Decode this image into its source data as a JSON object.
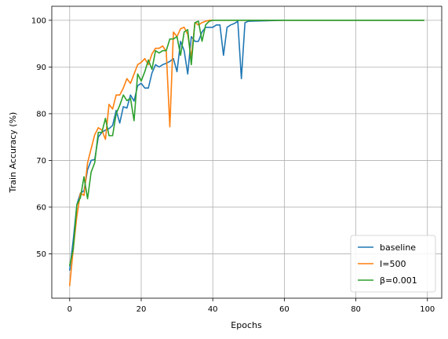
{
  "chart_data": {
    "type": "line",
    "xlabel": "Epochs",
    "ylabel": "Train Accuracy (%)",
    "xlim": [
      -5,
      104
    ],
    "ylim": [
      40.5,
      103
    ],
    "xticks": [
      0,
      20,
      40,
      60,
      80,
      100
    ],
    "yticks": [
      50,
      60,
      70,
      80,
      90,
      100
    ],
    "grid": true,
    "legend_position": "lower-right",
    "series": [
      {
        "name": "baseline",
        "color": "#1f77b4",
        "x": [
          0,
          1,
          2,
          3,
          4,
          5,
          6,
          7,
          8,
          9,
          10,
          11,
          12,
          13,
          14,
          15,
          16,
          17,
          18,
          19,
          20,
          21,
          22,
          23,
          24,
          25,
          26,
          27,
          28,
          29,
          30,
          31,
          32,
          33,
          34,
          35,
          36,
          37,
          38,
          39,
          40,
          41,
          42,
          43,
          44,
          45,
          46,
          47,
          48,
          49,
          50,
          55,
          60,
          70,
          80,
          90,
          99
        ],
        "y": [
          46.5,
          53,
          60.5,
          63,
          63.5,
          68,
          70,
          70.2,
          75,
          76,
          76.5,
          76.8,
          77.5,
          80.7,
          78,
          81.5,
          81.2,
          84,
          82.7,
          86,
          86.5,
          85.5,
          85.5,
          88.7,
          90.5,
          90,
          90.5,
          90.8,
          91.2,
          91.8,
          89,
          95.5,
          93.5,
          88.5,
          96.5,
          95.5,
          95.5,
          97.5,
          98.5,
          98.5,
          98.5,
          99,
          99,
          92.5,
          98.5,
          99,
          99.3,
          99.8,
          87.5,
          99.5,
          99.8,
          99.9,
          100,
          100,
          100,
          100,
          100
        ]
      },
      {
        "name": "I=500",
        "color": "#ff7f0e",
        "x": [
          0,
          1,
          2,
          3,
          4,
          5,
          6,
          7,
          8,
          9,
          10,
          11,
          12,
          13,
          14,
          15,
          16,
          17,
          18,
          19,
          20,
          21,
          22,
          23,
          24,
          25,
          26,
          27,
          28,
          29,
          30,
          31,
          32,
          33,
          34,
          35,
          36,
          37,
          38,
          39,
          40,
          45,
          50,
          60,
          70,
          80,
          90,
          99
        ],
        "y": [
          43.2,
          51,
          58,
          63,
          62.5,
          69.5,
          72.5,
          75.5,
          77,
          76.5,
          74.5,
          82,
          81,
          84,
          84,
          85.5,
          87.5,
          86.5,
          88.5,
          90.5,
          91,
          91.8,
          90.5,
          92.8,
          94,
          94,
          94.5,
          93.3,
          77.2,
          97.5,
          96.5,
          98.2,
          98.5,
          97,
          92,
          99.5,
          99,
          99.5,
          99.8,
          100,
          100,
          100,
          100,
          100,
          100,
          100,
          100,
          100
        ]
      },
      {
        "name": "β=0.001",
        "color": "#2ca02c",
        "x": [
          0,
          1,
          2,
          3,
          4,
          5,
          6,
          7,
          8,
          9,
          10,
          11,
          12,
          13,
          14,
          15,
          16,
          17,
          18,
          19,
          20,
          21,
          22,
          23,
          24,
          25,
          26,
          27,
          28,
          29,
          30,
          31,
          32,
          33,
          34,
          35,
          36,
          37,
          38,
          39,
          40,
          45,
          50,
          60,
          70,
          80,
          90,
          99
        ],
        "y": [
          47.5,
          51,
          60.5,
          62,
          66.5,
          61.8,
          67.5,
          69.5,
          76,
          76,
          79,
          75.3,
          75.3,
          80,
          81.8,
          84,
          82.8,
          83.3,
          78.5,
          88.5,
          87,
          89,
          91.5,
          89.5,
          93.5,
          93,
          93.5,
          93.5,
          96,
          96,
          96.5,
          92.5,
          97.5,
          98,
          90.5,
          99.5,
          99.8,
          95.5,
          99,
          99.8,
          100,
          100,
          100,
          100,
          100,
          100,
          100,
          100
        ]
      }
    ]
  }
}
